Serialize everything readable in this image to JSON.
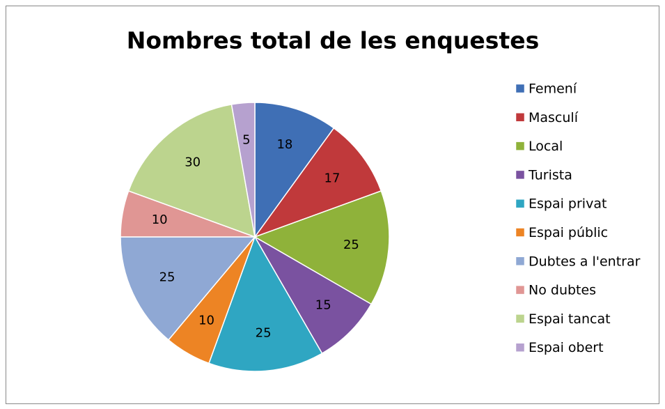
{
  "chart_data": {
    "type": "pie",
    "title": "Nombres total de les enquestes",
    "categories": [
      "Femení",
      "Masculí",
      "Local",
      "Turista",
      "Espai privat",
      "Espai públic",
      "Dubtes a l'entrar",
      "No dubtes",
      "Espai tancat",
      "Espai obert"
    ],
    "values": [
      18,
      17,
      25,
      15,
      25,
      10,
      25,
      10,
      30,
      5
    ],
    "colors": [
      "#3f6fb5",
      "#c0393b",
      "#8fb23a",
      "#7a52a0",
      "#2fa6c2",
      "#ed8424",
      "#8fa8d4",
      "#e09694",
      "#bcd48e",
      "#b6a1cf"
    ],
    "legend": "right"
  }
}
